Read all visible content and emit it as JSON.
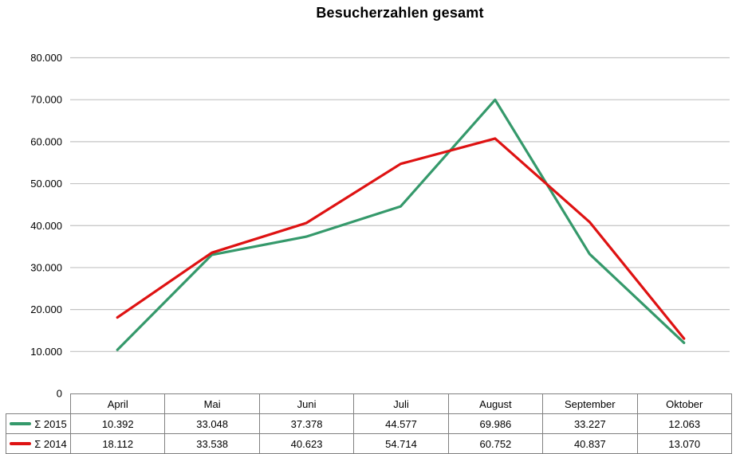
{
  "chart_data": {
    "type": "line",
    "title": "Besucherzahlen gesamt",
    "categories": [
      "April",
      "Mai",
      "Juni",
      "Juli",
      "August",
      "September",
      "Oktober"
    ],
    "series": [
      {
        "name": "Σ 2015",
        "color": "#35996b",
        "values": [
          10392,
          33048,
          37378,
          44577,
          69986,
          33227,
          12063
        ]
      },
      {
        "name": "Σ 2014",
        "color": "#de1212",
        "values": [
          18112,
          33538,
          40623,
          54714,
          60752,
          40837,
          13070
        ]
      }
    ],
    "table_values": [
      [
        "10.392",
        "33.048",
        "37.378",
        "44.577",
        "69.986",
        "33.227",
        "12.063"
      ],
      [
        "18.112",
        "33.538",
        "40.623",
        "54.714",
        "60.752",
        "40.837",
        "13.070"
      ]
    ],
    "ylim": [
      0,
      80000
    ],
    "ytick_step": 10000,
    "ytick_labels": [
      "0",
      "10.000",
      "20.000",
      "30.000",
      "40.000",
      "50.000",
      "60.000",
      "70.000",
      "80.000"
    ],
    "grid": true,
    "legend_position": "table-left"
  },
  "colors": {
    "gridline": "#c3c3c3",
    "table_border": "#808080",
    "text": "#000000"
  }
}
